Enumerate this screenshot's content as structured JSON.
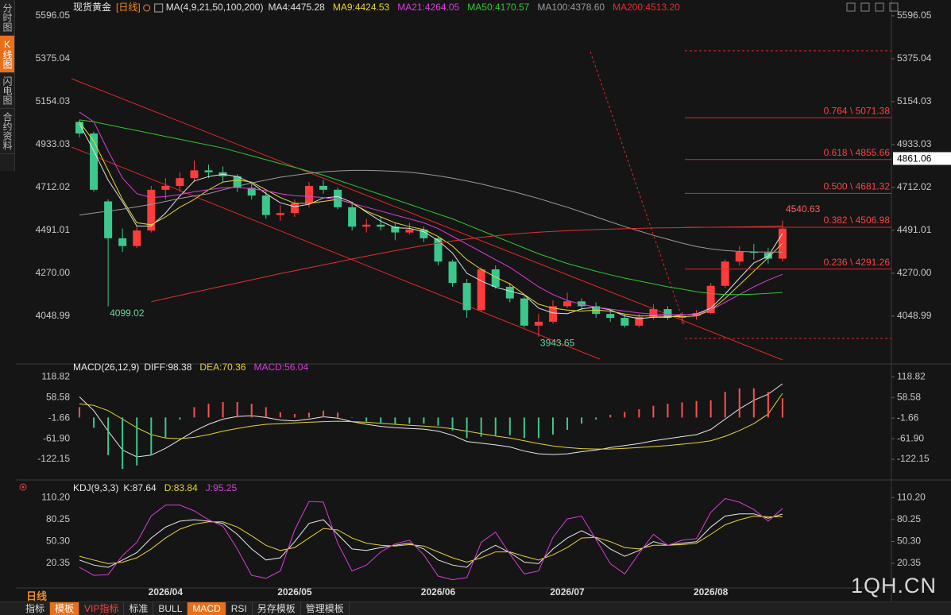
{
  "sidebar": {
    "tabs": [
      "分时图",
      "K线图",
      "闪电图",
      "合约资料"
    ]
  },
  "chart_data": [
    {
      "type": "candlestick",
      "title": "现货黄金",
      "period": "[日线]",
      "indicator": "MA(4,9,21,50,100,200)",
      "categories": [
        null,
        null,
        null,
        null,
        null,
        null,
        "2026/04",
        null,
        null,
        null,
        null,
        null,
        null,
        null,
        null,
        "2026/05",
        null,
        null,
        null,
        null,
        null,
        null,
        null,
        null,
        null,
        "2026/06",
        null,
        null,
        null,
        null,
        null,
        null,
        null,
        null,
        "2026/07",
        null,
        null,
        null,
        null,
        null,
        null,
        null,
        null,
        null,
        "2026/08",
        null,
        null,
        null,
        null,
        null
      ],
      "open": [
        5050,
        4990,
        4640,
        4450,
        4410,
        4490,
        4700,
        4720,
        4760,
        4800,
        4790,
        4770,
        4710,
        4670,
        4570,
        4580,
        4630,
        4720,
        4700,
        4610,
        4510,
        4520,
        4510,
        4480,
        4495,
        4450,
        4330,
        4220,
        4080,
        4290,
        4200,
        4140,
        4000,
        4020,
        4100,
        4125,
        4100,
        4060,
        4040,
        4000,
        4045,
        4085,
        4040,
        4050,
        4065,
        4205,
        4330,
        4380,
        4375,
        4345
      ],
      "high": [
        5060,
        5000,
        4650,
        4500,
        4510,
        4720,
        4760,
        4790,
        4850,
        4830,
        4820,
        4780,
        4730,
        4690,
        4620,
        4650,
        4740,
        4750,
        4710,
        4630,
        4550,
        4560,
        4530,
        4530,
        4510,
        4460,
        4340,
        4240,
        4300,
        4310,
        4220,
        4150,
        4060,
        4130,
        4170,
        4140,
        4120,
        4080,
        4060,
        4060,
        4110,
        4100,
        4070,
        4080,
        4220,
        4340,
        4410,
        4420,
        4400,
        4540.63
      ],
      "low": [
        4970,
        4690,
        4099.02,
        4380,
        4400,
        4480,
        4650,
        4690,
        4740,
        4760,
        4740,
        4690,
        4650,
        4550,
        4540,
        4560,
        4610,
        4680,
        4600,
        4490,
        4480,
        4490,
        4440,
        4470,
        4430,
        4310,
        4200,
        4040,
        4070,
        4190,
        4120,
        3990,
        3943.65,
        4010,
        4090,
        4080,
        4040,
        4020,
        3990,
        3990,
        4030,
        4030,
        4010,
        4030,
        4060,
        4195,
        4310,
        4340,
        4320,
        4330
      ],
      "close": [
        4990,
        4700,
        4450,
        4410,
        4490,
        4700,
        4720,
        4760,
        4800,
        4790,
        4770,
        4710,
        4670,
        4570,
        4580,
        4630,
        4720,
        4700,
        4610,
        4510,
        4520,
        4510,
        4480,
        4495,
        4450,
        4330,
        4220,
        4080,
        4290,
        4200,
        4140,
        4000,
        4020,
        4100,
        4125,
        4100,
        4060,
        4040,
        4000,
        4045,
        4085,
        4040,
        4050,
        4065,
        4205,
        4330,
        4380,
        4375,
        4345,
        4500
      ],
      "up_color": "#ff3c3c",
      "down_color": "#3cc88c",
      "series": [
        {
          "name": "MA4:4475.28",
          "color": "#e0e0e0",
          "values": [
            5040,
            4900,
            4750,
            4638,
            4513,
            4513,
            4580,
            4668,
            4745,
            4768,
            4780,
            4768,
            4735,
            4680,
            4633,
            4613,
            4625,
            4658,
            4665,
            4635,
            4585,
            4538,
            4505,
            4501,
            4484,
            4439,
            4374,
            4270,
            4230,
            4198,
            4178,
            4158,
            4090,
            4065,
            4061,
            4086,
            4096,
            4081,
            4050,
            4036,
            4043,
            4043,
            4055,
            4060,
            4090,
            4163,
            4245,
            4323,
            4358,
            4475.28
          ]
        },
        {
          "name": "MA9:4424.53",
          "color": "#e6d335",
          "values": [
            5050,
            4950,
            4800,
            4650,
            4530,
            4520,
            4560,
            4610,
            4650,
            4700,
            4740,
            4750,
            4740,
            4700,
            4660,
            4630,
            4630,
            4640,
            4650,
            4630,
            4590,
            4560,
            4530,
            4510,
            4495,
            4460,
            4410,
            4340,
            4290,
            4250,
            4215,
            4160,
            4110,
            4090,
            4080,
            4075,
            4080,
            4075,
            4060,
            4050,
            4050,
            4048,
            4045,
            4050,
            4080,
            4140,
            4210,
            4280,
            4350,
            4424.53
          ]
        },
        {
          "name": "MA21:4264.05",
          "color": "#d63fd6",
          "values": [
            5100,
            5050,
            4900,
            4760,
            4680,
            4660,
            4665,
            4675,
            4690,
            4700,
            4710,
            4712,
            4705,
            4695,
            4680,
            4670,
            4665,
            4660,
            4650,
            4630,
            4610,
            4590,
            4570,
            4550,
            4530,
            4500,
            4460,
            4420,
            4380,
            4340,
            4300,
            4250,
            4200,
            4160,
            4130,
            4110,
            4095,
            4085,
            4075,
            4065,
            4060,
            4058,
            4056,
            4058,
            4080,
            4120,
            4160,
            4200,
            4235,
            4264.05
          ]
        },
        {
          "name": "MA50:4170.57",
          "color": "#33c633",
          "values": [
            5060,
            5050,
            5035,
            5020,
            5005,
            4990,
            4975,
            4960,
            4945,
            4930,
            4915,
            4895,
            4875,
            4855,
            4835,
            4815,
            4795,
            4775,
            4750,
            4725,
            4700,
            4675,
            4650,
            4625,
            4600,
            4575,
            4550,
            4520,
            4490,
            4460,
            4430,
            4400,
            4370,
            4345,
            4320,
            4300,
            4280,
            4262,
            4245,
            4230,
            4215,
            4200,
            4188,
            4175,
            4165,
            4160,
            4160,
            4162,
            4166,
            4170.57
          ]
        },
        {
          "name": "MA100:4378.60",
          "color": "#9a9a9a",
          "values": [
            4570,
            4580,
            4590,
            4600,
            4612,
            4625,
            4640,
            4655,
            4668,
            4680,
            4700,
            4718,
            4735,
            4750,
            4765,
            4775,
            4785,
            4792,
            4797,
            4800,
            4800,
            4798,
            4795,
            4790,
            4782,
            4772,
            4760,
            4745,
            4730,
            4712,
            4695,
            4675,
            4655,
            4632,
            4610,
            4585,
            4560,
            4535,
            4510,
            4488,
            4465,
            4445,
            4425,
            4408,
            4395,
            4387,
            4382,
            4380,
            4379,
            4378.6
          ]
        },
        {
          "name": "MA200:4513.20",
          "color": "#e03030",
          "values": [
            null,
            null,
            null,
            null,
            null,
            4123,
            4140,
            4156,
            4172,
            4188,
            4204,
            4220,
            4236,
            4252,
            4268,
            4283,
            4298,
            4313,
            4328,
            4343,
            4358,
            4372,
            4386,
            4400,
            4413,
            4425,
            4436,
            4446,
            4455,
            4463,
            4470,
            4476,
            4481,
            4485,
            4489,
            4492,
            4495,
            4497,
            4499,
            4501,
            4503,
            4504,
            4505,
            4506,
            4507,
            4508,
            4509,
            4510,
            4511,
            4513.2
          ]
        }
      ],
      "ylim": [
        3815,
        5645
      ],
      "yticks": [
        5596.05,
        5375.04,
        5154.03,
        4933.03,
        4712.02,
        4491.01,
        {
          "value": 4270,
          "label": "4270.00"
        },
        4048.99
      ],
      "annotations": [
        4099.02,
        3943.65,
        4540.63
      ],
      "fib_levels": [
        {
          "value": 5071.38,
          "label": "0.764 \\ 5071.38"
        },
        {
          "value": 4855.66,
          "label": "0.618 \\ 4855.66"
        },
        {
          "value": 4681.32,
          "label": "0.500 \\ 4681.32"
        },
        {
          "value": 4506.98,
          "label": "0.382 \\ 4506.98"
        },
        {
          "value": 4291.26,
          "label": "0.236 \\ 4291.26"
        }
      ],
      "fib_bounds": [
        5416,
        3934
      ],
      "crosshair_price": 4861.06,
      "grid": false
    },
    {
      "type": "macd",
      "title": "MACD(26,12,9)",
      "series": [
        {
          "name": "DIFF:98.38",
          "color": "#e8e8e8",
          "kind": "line",
          "values": [
            60,
            20,
            -40,
            -95,
            -115,
            -110,
            -90,
            -65,
            -40,
            -20,
            -5,
            3,
            5,
            0,
            -8,
            -10,
            -5,
            2,
            -2,
            -12,
            -20,
            -26,
            -30,
            -32,
            -34,
            -40,
            -52,
            -70,
            -75,
            -80,
            -86,
            -98,
            -106,
            -108,
            -106,
            -100,
            -95,
            -88,
            -82,
            -76,
            -68,
            -62,
            -56,
            -50,
            -35,
            -5,
            25,
            50,
            68,
            98.38
          ]
        },
        {
          "name": "DEA:70.36",
          "color": "#e6d335",
          "kind": "line",
          "values": [
            40,
            35,
            20,
            -5,
            -30,
            -50,
            -60,
            -62,
            -58,
            -50,
            -40,
            -32,
            -25,
            -20,
            -18,
            -16,
            -14,
            -12,
            -11,
            -12,
            -14,
            -17,
            -20,
            -23,
            -25,
            -28,
            -33,
            -40,
            -47,
            -54,
            -60,
            -68,
            -76,
            -83,
            -88,
            -91,
            -92,
            -92,
            -90,
            -88,
            -85,
            -82,
            -78,
            -74,
            -68,
            -55,
            -38,
            -18,
            10,
            70.36
          ]
        },
        {
          "name": "MACD:56.04",
          "color": "#d63fd6",
          "kind": "histogram",
          "up_color": "#ff5050",
          "down_color": "#3cc88c",
          "values": [
            30,
            -30,
            -110,
            -150,
            -140,
            -110,
            -60,
            -6,
            30,
            40,
            45,
            45,
            40,
            30,
            15,
            10,
            14,
            20,
            14,
            0,
            -12,
            -18,
            -20,
            -18,
            -18,
            -24,
            -38,
            -60,
            -56,
            -52,
            -52,
            -60,
            -60,
            -50,
            -36,
            -18,
            -6,
            8,
            16,
            24,
            34,
            40,
            44,
            48,
            50,
            75,
            85,
            85,
            75,
            56.04
          ]
        }
      ],
      "ylim": [
        -173,
        147
      ],
      "yticks": [
        118.82,
        58.58,
        -1.66,
        {
          "value": -61.9,
          "label": "-61.90"
        },
        -122.15
      ]
    },
    {
      "type": "kdj",
      "title": "KDJ(9,3,3)",
      "series": [
        {
          "name": "K:87.64",
          "color": "#e8e8e8",
          "kind": "line",
          "values": [
            25,
            18,
            15,
            25,
            35,
            55,
            70,
            78,
            80,
            78,
            75,
            60,
            40,
            25,
            28,
            50,
            75,
            80,
            60,
            40,
            38,
            42,
            45,
            48,
            40,
            25,
            18,
            15,
            35,
            45,
            35,
            22,
            20,
            40,
            55,
            65,
            55,
            40,
            30,
            38,
            50,
            45,
            48,
            50,
            70,
            85,
            88,
            88,
            82,
            87.64
          ]
        },
        {
          "name": "D:83.84",
          "color": "#e6d335",
          "kind": "line",
          "values": [
            30,
            25,
            20,
            22,
            28,
            40,
            55,
            67,
            74,
            77,
            77,
            70,
            58,
            45,
            38,
            42,
            55,
            68,
            66,
            55,
            48,
            45,
            44,
            46,
            44,
            36,
            28,
            22,
            28,
            36,
            36,
            30,
            25,
            32,
            42,
            55,
            56,
            50,
            42,
            40,
            45,
            45,
            46,
            48,
            60,
            73,
            80,
            85,
            84,
            83.84
          ]
        },
        {
          "name": "J:95.25",
          "color": "#d63fd6",
          "kind": "line",
          "values": [
            15,
            4,
            5,
            31,
            49,
            85,
            100,
            100,
            92,
            80,
            71,
            40,
            4,
            0,
            10,
            66,
            105,
            104,
            48,
            10,
            18,
            36,
            47,
            52,
            32,
            3,
            -2,
            1,
            49,
            63,
            33,
            6,
            10,
            56,
            81,
            85,
            53,
            20,
            6,
            34,
            60,
            45,
            52,
            54,
            90,
            109,
            104,
            94,
            78,
            95.25
          ]
        }
      ],
      "ylim": [
        -10,
        130
      ],
      "yticks": [
        {
          "value": 110.2,
          "label": "110.20"
        },
        80.25,
        {
          "value": 50.3,
          "label": "50.30"
        },
        20.35
      ]
    }
  ],
  "footer": {
    "period": "日线",
    "tabs": [
      "指标",
      "模板",
      "VIP指标",
      "标准",
      "BULL",
      "MACD",
      "RSI",
      "另存模板",
      "管理模板"
    ]
  },
  "watermark": "1QH.CN"
}
